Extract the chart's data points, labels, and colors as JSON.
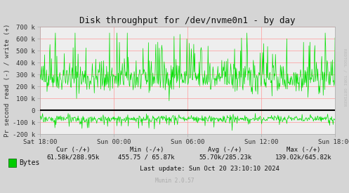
{
  "title": "Disk throughput for /dev/nvme0n1 - by day",
  "ylabel": "Pr second read (-) / write (+)",
  "ylim": [
    -200000,
    700000
  ],
  "yticks": [
    -200000,
    -100000,
    0,
    100000,
    200000,
    300000,
    400000,
    500000,
    600000,
    700000
  ],
  "ytick_labels": [
    "-200 k",
    "-100 k",
    "0",
    "100 k",
    "200 k",
    "300 k",
    "400 k",
    "500 k",
    "600 k",
    "700 k"
  ],
  "xtick_labels": [
    "Sat 18:00",
    "Sun 00:00",
    "Sun 06:00",
    "Sun 12:00",
    "Sun 18:00"
  ],
  "bg_color": "#d5d5d5",
  "plot_bg_color": "#eeeeee",
  "grid_color": "#ff9999",
  "line_color": "#00e000",
  "zero_line_color": "#000000",
  "legend_label": "Bytes",
  "legend_color": "#00cc00",
  "cur_text": "Cur (-/+)",
  "cur_val": "61.58k/288.95k",
  "min_text": "Min (-/+)",
  "min_val": "455.75 / 65.87k",
  "avg_text": "Avg (-/+)",
  "avg_val": "55.70k/285.23k",
  "max_text": "Max (-/+)",
  "max_val": "139.02k/645.82k",
  "last_update": "Last update: Sun Oct 20 23:10:10 2024",
  "munin_text": "Munin 2.0.57",
  "rrdtool_text": "RRDTOOL / TOBI OETIKER",
  "title_fontsize": 9,
  "axis_fontsize": 6.5,
  "legend_fontsize": 7,
  "annotation_fontsize": 6.5
}
